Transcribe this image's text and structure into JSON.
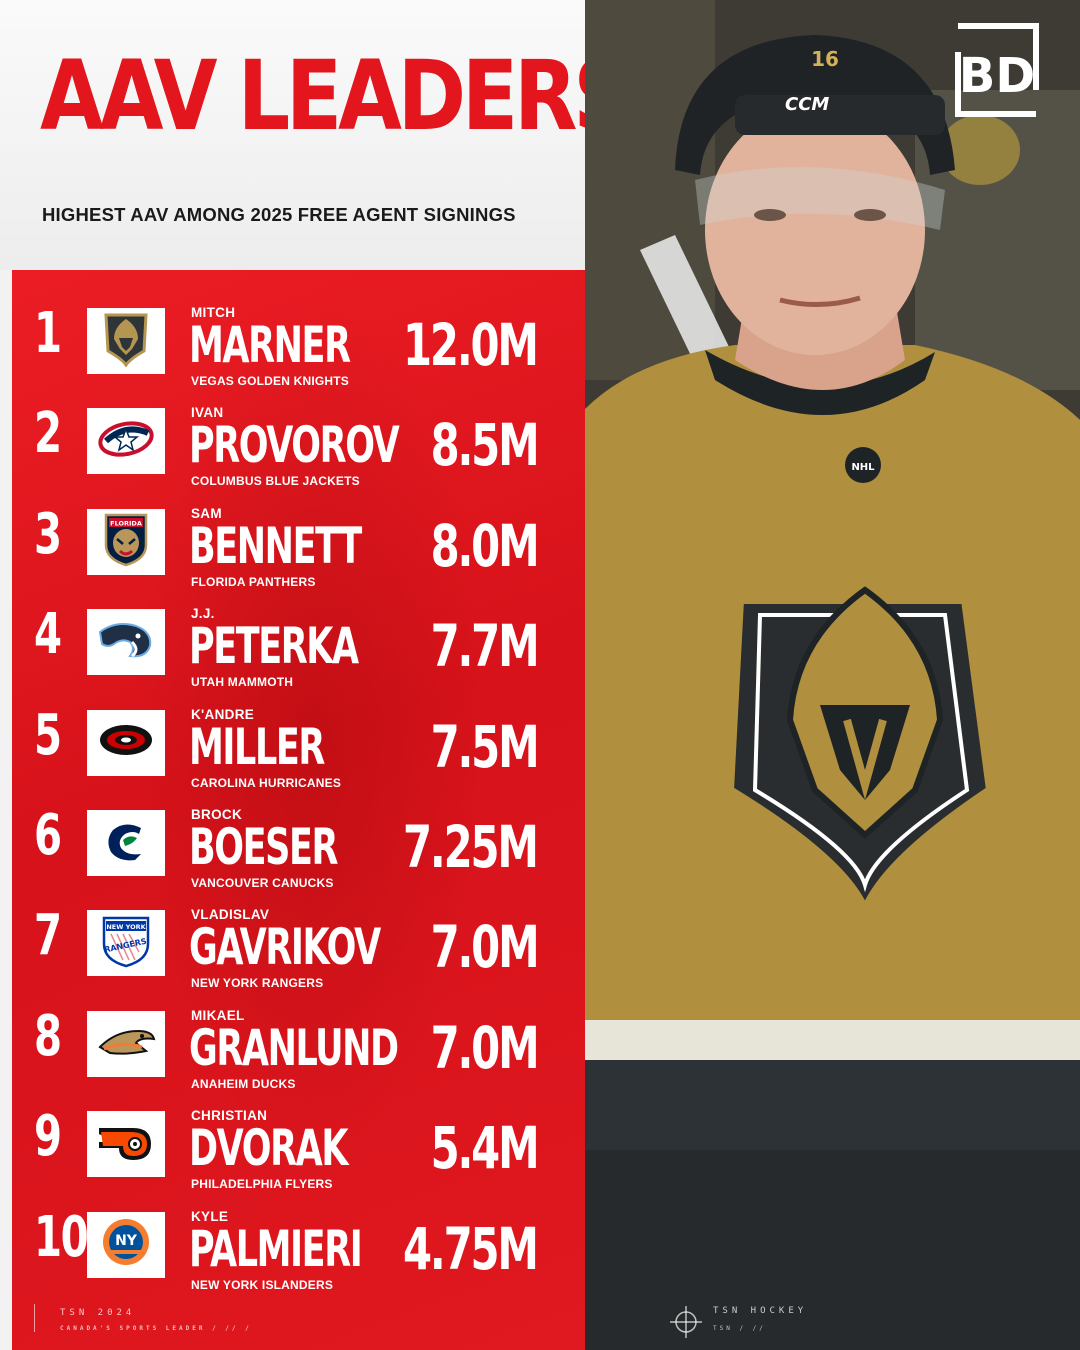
{
  "header": {
    "title": "AAV LEADERS",
    "subtitle": "HIGHEST AAV AMONG 2025 FREE AGENT SIGNINGS"
  },
  "colors": {
    "accent_red": "#e3151d",
    "panel_red": "#e01820",
    "vegas_gold": "#b49650",
    "vegas_steel": "#2f3438"
  },
  "leaders": [
    {
      "rank": "1",
      "first": "MITCH",
      "last": "MARNER",
      "team": "VEGAS GOLDEN KNIGHTS",
      "aav": "12.0M",
      "logo": "vegas-golden-knights-logo"
    },
    {
      "rank": "2",
      "first": "IVAN",
      "last": "PROVOROV",
      "team": "COLUMBUS BLUE JACKETS",
      "aav": "8.5M",
      "logo": "columbus-blue-jackets-logo"
    },
    {
      "rank": "3",
      "first": "SAM",
      "last": "BENNETT",
      "team": "FLORIDA PANTHERS",
      "aav": "8.0M",
      "logo": "florida-panthers-logo"
    },
    {
      "rank": "4",
      "first": "J.J.",
      "last": "PETERKA",
      "team": "UTAH MAMMOTH",
      "aav": "7.7M",
      "logo": "utah-mammoth-logo"
    },
    {
      "rank": "5",
      "first": "K'ANDRE",
      "last": "MILLER",
      "team": "CAROLINA HURRICANES",
      "aav": "7.5M",
      "logo": "carolina-hurricanes-logo"
    },
    {
      "rank": "6",
      "first": "BROCK",
      "last": "BOESER",
      "team": "VANCOUVER CANUCKS",
      "aav": "7.25M",
      "logo": "vancouver-canucks-logo"
    },
    {
      "rank": "7",
      "first": "VLADISLAV",
      "last": "GAVRIKOV",
      "team": "NEW YORK RANGERS",
      "aav": "7.0M",
      "logo": "new-york-rangers-logo"
    },
    {
      "rank": "8",
      "first": "MIKAEL",
      "last": "GRANLUND",
      "team": "ANAHEIM DUCKS",
      "aav": "7.0M",
      "logo": "anaheim-ducks-logo"
    },
    {
      "rank": "9",
      "first": "CHRISTIAN",
      "last": "DVORAK",
      "team": "PHILADELPHIA FLYERS",
      "aav": "5.4M",
      "logo": "philadelphia-flyers-logo"
    },
    {
      "rank": "10",
      "first": "KYLE",
      "last": "PALMIERI",
      "team": "NEW YORK ISLANDERS",
      "aav": "4.75M",
      "logo": "new-york-islanders-logo"
    }
  ],
  "logo_text": {
    "panthers": "FLORIDA",
    "rangers_top": "NEW YORK",
    "rangers_bottom": "RANGERS",
    "islanders": "NY",
    "jersey_number": "16",
    "helmet_brand": "CCM",
    "nhl_badge": "NHL",
    "brand_logo": "BD"
  },
  "footer": {
    "left_line1": "TSN 2024",
    "left_line2": "CANADA'S SPORTS LEADER / // /",
    "right_line1": "TSN HOCKEY",
    "right_line2": "TSN / //"
  }
}
